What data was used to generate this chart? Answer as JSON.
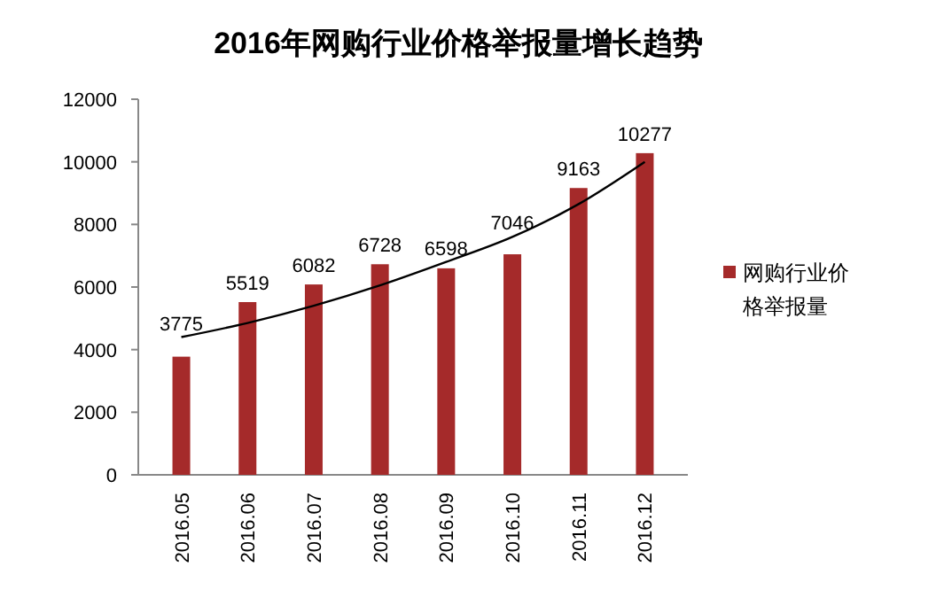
{
  "chart_data": {
    "type": "bar",
    "title": "2016年网购行业价格举报量增长趋势",
    "categories": [
      "2016.05",
      "2016.06",
      "2016.07",
      "2016.08",
      "2016.09",
      "2016.10",
      "2016.11",
      "2016.12"
    ],
    "series": [
      {
        "name": "网购行业价格举报量",
        "color": "#a52a2a",
        "values": [
          3775,
          5519,
          6082,
          6728,
          6598,
          7046,
          9163,
          10277
        ],
        "value_labels": [
          "3775",
          "5519",
          "6082",
          "6728",
          "6598",
          "7046",
          "9163",
          "10277"
        ]
      },
      {
        "type": "line",
        "color": "#000000",
        "values": [
          4400,
          4850,
          5400,
          6050,
          6800,
          7600,
          8650,
          10000
        ]
      }
    ],
    "ylim": [
      0,
      12000
    ],
    "yticks": [
      0,
      2000,
      4000,
      6000,
      8000,
      10000,
      12000
    ],
    "legend": "right",
    "marker": "none"
  }
}
